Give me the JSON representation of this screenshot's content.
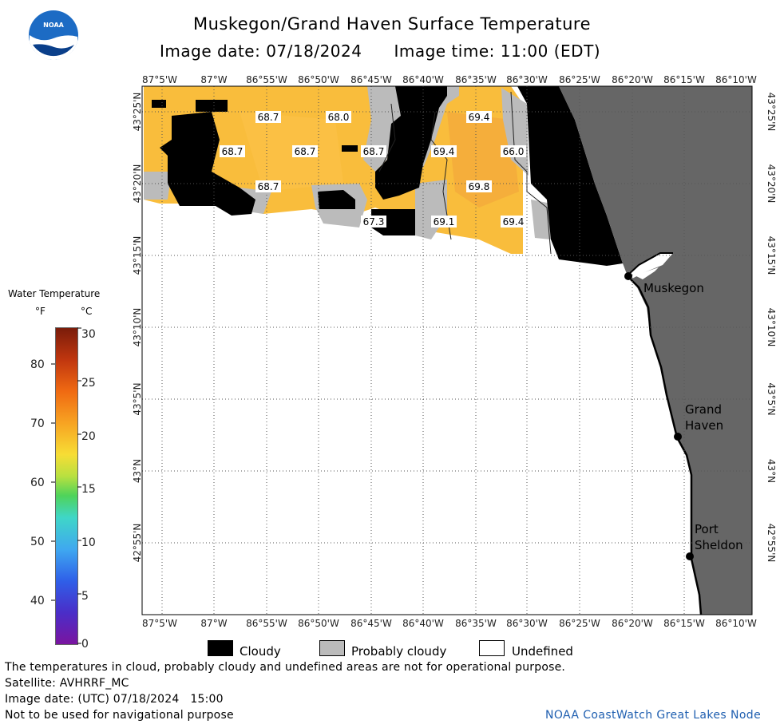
{
  "header": {
    "title": "Muskegon/Grand Haven Surface Temperature",
    "image_date": "Image date: 07/18/2024",
    "image_time": "Image time: 11:00 (EDT)"
  },
  "map": {
    "lon_labels": [
      "87°5'W",
      "87°W",
      "86°55'W",
      "86°50'W",
      "86°45'W",
      "86°40'W",
      "86°35'W",
      "86°30'W",
      "86°25'W",
      "86°20'W",
      "86°15'W",
      "86°10'W"
    ],
    "lat_labels": [
      "43°25'N",
      "43°20'N",
      "43°15'N",
      "43°10'N",
      "43°5'N",
      "43°N",
      "42°55'N"
    ],
    "temperature_labels": [
      "68.7",
      "68.0",
      "69.4",
      "68.7",
      "68.7",
      "68.7",
      "69.4",
      "66.0",
      "68.7",
      "69.8",
      "67.3",
      "69.1",
      "69.4"
    ],
    "cities": [
      "Muskegon",
      "Grand",
      "Haven",
      "Port",
      "Sheldon"
    ],
    "colors": {
      "land": "#666666",
      "cloudy": "#000000",
      "probably_cloudy": "#bbbbbb",
      "water_warm": "#f9bd3c",
      "undefined": "#ffffff"
    }
  },
  "legend": {
    "title": "Water Temperature",
    "unit_f": "°F",
    "unit_c": "°C",
    "f_ticks": [
      "80",
      "70",
      "60",
      "50",
      "40"
    ],
    "c_ticks": [
      "30",
      "25",
      "20",
      "15",
      "10",
      "5",
      "0"
    ]
  },
  "key": {
    "cloudy": "Cloudy",
    "probably_cloudy": "Probably cloudy",
    "undefined": "Undefined"
  },
  "footer": {
    "note": "The temperatures in cloud, probably cloudy and undefined areas are not for operational purpose.",
    "satellite": "Satellite: AVHRRF_MC",
    "utc_date": "Image date: (UTC) 07/18/2024   15:00",
    "nav_warning": "Not to be used for navigational purpose",
    "credit": "NOAA CoastWatch Great Lakes Node"
  }
}
